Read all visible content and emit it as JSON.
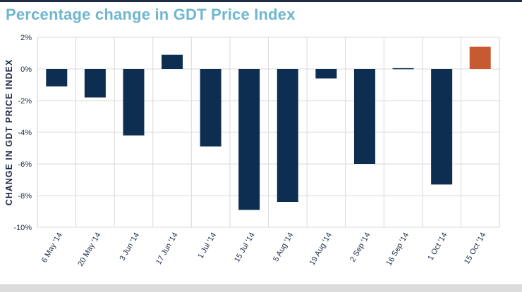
{
  "chart_data": {
    "type": "bar",
    "title": "Percentage change in GDT Price Index",
    "ylabel": "CHANGE IN GDT PRICE INDEX",
    "xlabel": "",
    "ylim": [
      -10,
      2
    ],
    "y_ticks": [
      2,
      0,
      -2,
      -4,
      -6,
      -8,
      -10
    ],
    "y_tick_labels": [
      "2%",
      "0%",
      "-2%",
      "-4%",
      "-6%",
      "-8%",
      "-10%"
    ],
    "grid": true,
    "categories": [
      "6 May '14",
      "20 May '14",
      "3 Jun '14",
      "17 Jun '14",
      "1 Jul '14",
      "15 Jul '14",
      "5 Aug '14",
      "19 Aug '14",
      "2 Sep '14",
      "16 Sep '14",
      "1 Oct '14",
      "15 Oct '14"
    ],
    "values": [
      -1.1,
      -1.8,
      -4.2,
      0.9,
      -4.9,
      -8.9,
      -8.4,
      -0.6,
      -6.0,
      0.05,
      -7.3,
      1.4
    ],
    "colors": [
      "#0d2e50",
      "#0d2e50",
      "#0d2e50",
      "#0d2e50",
      "#0d2e50",
      "#0d2e50",
      "#0d2e50",
      "#0d2e50",
      "#0d2e50",
      "#0d2e50",
      "#0d2e50",
      "#c85a32"
    ]
  },
  "theme": {
    "title_color": "#6fb6cf",
    "axis_text_color": "#1f2d4a",
    "grid_color": "#d9d9d9",
    "frame_color": "#cfcfcf"
  }
}
